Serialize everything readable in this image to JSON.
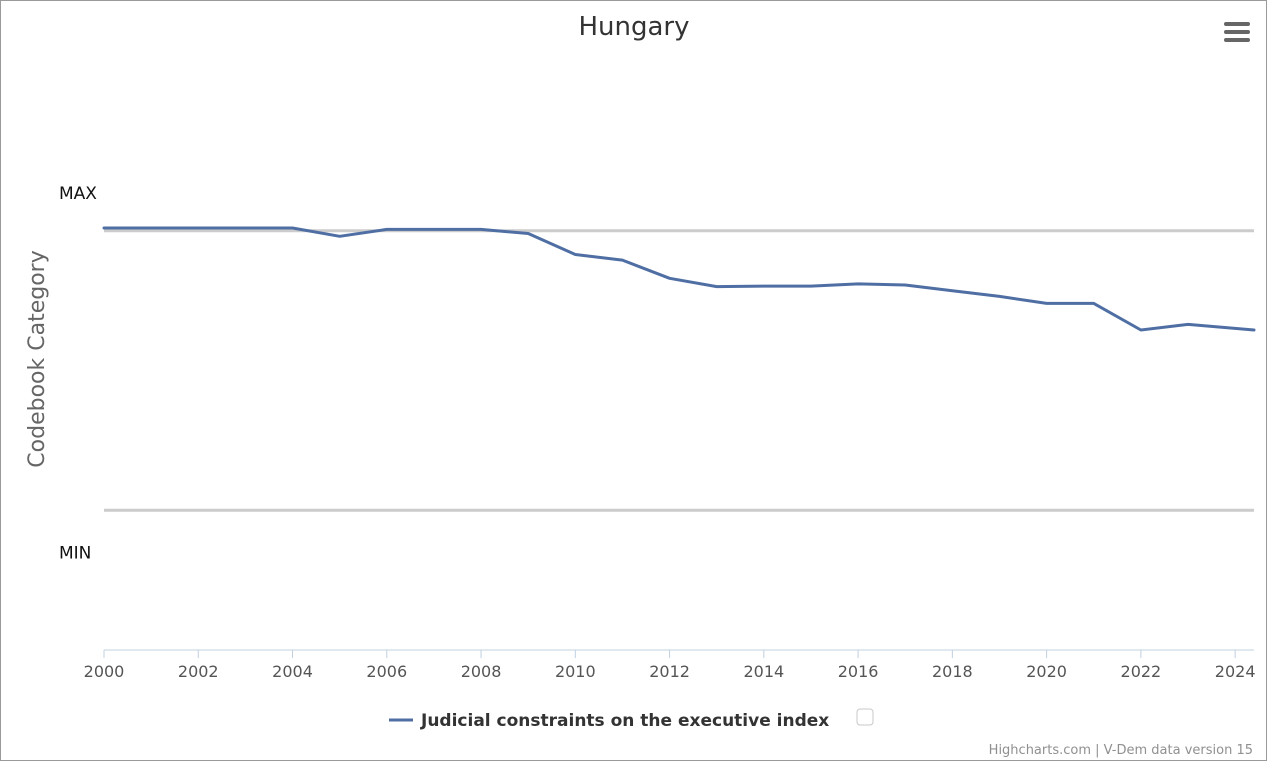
{
  "chart_data": {
    "type": "line",
    "title": "Hungary",
    "ylabel": "Codebook Category",
    "xlabel": "",
    "x_ticks": [
      "2000",
      "2002",
      "2004",
      "2006",
      "2008",
      "2010",
      "2012",
      "2014",
      "2016",
      "2018",
      "2020",
      "2022",
      "2024"
    ],
    "xlim": [
      2000,
      2024.4
    ],
    "ylim": [
      -0.5,
      1.5
    ],
    "y_categories": [
      {
        "label": "MAX",
        "value": 1
      },
      {
        "label": "MIN",
        "value": 0
      }
    ],
    "series": [
      {
        "name": "Judicial constraints on the executive index",
        "color": "#4f6fa4",
        "x": [
          2000,
          2001,
          2002,
          2003,
          2004,
          2005,
          2006,
          2007,
          2008,
          2009,
          2010,
          2011,
          2012,
          2013,
          2014,
          2015,
          2016,
          2017,
          2018,
          2019,
          2020,
          2021,
          2022,
          2023,
          2024.4
        ],
        "values": [
          1.01,
          1.01,
          1.01,
          1.01,
          1.01,
          0.98,
          1.005,
          1.005,
          1.005,
          0.99,
          0.915,
          0.895,
          0.83,
          0.8,
          0.802,
          0.802,
          0.81,
          0.806,
          0.785,
          0.765,
          0.74,
          0.74,
          0.645,
          0.665,
          0.645
        ]
      }
    ],
    "grid": true,
    "legend_position": "bottom-center"
  },
  "credits": "Highcharts.com | V-Dem data version 15",
  "menu_icon": "hamburger-menu-icon"
}
